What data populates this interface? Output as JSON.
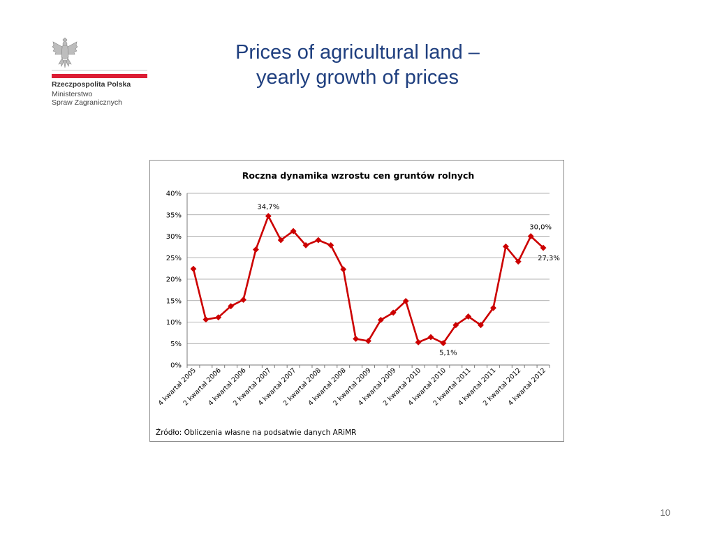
{
  "slide": {
    "title_line1": "Prices of agricultural land –",
    "title_line2": "yearly growth of prices",
    "page_number": "10"
  },
  "logo": {
    "line1": "Rzeczpospolita Polska",
    "line2": "Ministerstwo",
    "line3": "Spraw Zagranicznych",
    "icon": "polish-eagle-emblem",
    "accent_color": "#dc1e35"
  },
  "chart_data": {
    "type": "line",
    "title": "Roczna dynamika wzrostu cen gruntów rolnych",
    "source_note": "Źródło: Obliczenia własne  na podsatwie  danych ARiMR",
    "tick_labels_x": [
      "4 kwartał 2005",
      "2 kwartał 2006",
      "4 kwartał 2006",
      "2 kwartał 2007",
      "4 kwartał 2007",
      "2 kwartał 2008",
      "4 kwartał 2008",
      "2 kwartał 2009",
      "4 kwartał 2009",
      "2 kwartał 2010",
      "4 kwartał 2010",
      "2 kwartał 2011",
      "4 kwartał 2011",
      "2 kwartał 2012",
      "4 kwartał 2012"
    ],
    "y_ticks": [
      "0%",
      "5%",
      "10%",
      "15%",
      "20%",
      "25%",
      "30%",
      "35%",
      "40%"
    ],
    "ylim": [
      0,
      40
    ],
    "y_unit": "%",
    "grid": true,
    "legend": "none",
    "series": [
      {
        "color": "#cc0000",
        "values": [
          22.4,
          10.6,
          11.1,
          13.7,
          15.2,
          26.9,
          34.7,
          29.1,
          31.2,
          27.9,
          29.1,
          27.9,
          22.3,
          6.1,
          5.6,
          10.5,
          12.2,
          14.9,
          5.3,
          6.5,
          5.1,
          9.3,
          11.3,
          9.3,
          13.3,
          27.6,
          24.1,
          30.0,
          27.3
        ]
      }
    ],
    "annotations": [
      {
        "index": 6,
        "text": "34,7%"
      },
      {
        "index": 20,
        "text": "5,1%"
      },
      {
        "index": 27,
        "text": "30,0%"
      },
      {
        "index": 28,
        "text": "27,3%"
      }
    ]
  }
}
